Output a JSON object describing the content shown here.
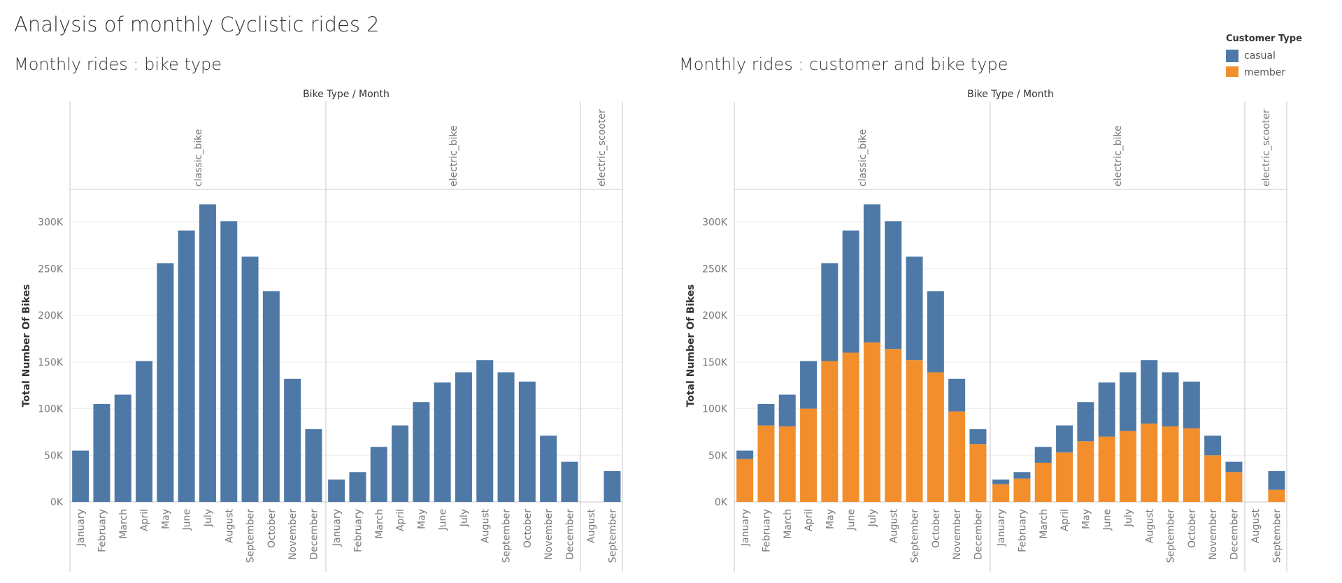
{
  "dashboard": {
    "title": "Analysis of monthly Cyclistic rides 2"
  },
  "legend": {
    "title": "Customer Type",
    "items": [
      {
        "label": "casual",
        "color": "#4e79a7"
      },
      {
        "label": "member",
        "color": "#f28e2b"
      }
    ]
  },
  "chart_data": [
    {
      "type": "bar",
      "title": "Monthly rides : bike type",
      "column_header": "Bike Type  /  Month",
      "ylabel": "Total Number Of Bikes",
      "ylim": [
        0,
        335000
      ],
      "yticks": [
        0,
        50000,
        100000,
        150000,
        200000,
        250000,
        300000
      ],
      "ytick_labels": [
        "0K",
        "50K",
        "100K",
        "150K",
        "200K",
        "250K",
        "300K"
      ],
      "color": "#4e79a7",
      "panes": [
        {
          "name": "classic_bike",
          "categories": [
            "January",
            "February",
            "March",
            "April",
            "May",
            "June",
            "July",
            "August",
            "September",
            "October",
            "November",
            "December"
          ],
          "values": [
            55000,
            105000,
            115000,
            151000,
            256000,
            291000,
            319000,
            301000,
            263000,
            226000,
            132000,
            78000
          ]
        },
        {
          "name": "electric_bike",
          "categories": [
            "January",
            "February",
            "March",
            "April",
            "May",
            "June",
            "July",
            "August",
            "September",
            "October",
            "November",
            "December"
          ],
          "values": [
            24000,
            32000,
            59000,
            82000,
            107000,
            128000,
            139000,
            152000,
            139000,
            129000,
            71000,
            43000
          ]
        },
        {
          "name": "electric_scooter",
          "categories": [
            "August",
            "September"
          ],
          "values": [
            0,
            33000
          ]
        }
      ]
    },
    {
      "type": "bar",
      "stacked": true,
      "title": "Monthly rides : customer and bike type",
      "column_header": "Bike Type  /  Month",
      "ylabel": "Total Number Of Bikes",
      "ylim": [
        0,
        335000
      ],
      "yticks": [
        0,
        50000,
        100000,
        150000,
        200000,
        250000,
        300000
      ],
      "ytick_labels": [
        "0K",
        "50K",
        "100K",
        "150K",
        "200K",
        "250K",
        "300K"
      ],
      "panes": [
        {
          "name": "classic_bike",
          "categories": [
            "January",
            "February",
            "March",
            "April",
            "May",
            "June",
            "July",
            "August",
            "September",
            "October",
            "November",
            "December"
          ],
          "series": [
            {
              "name": "member",
              "color": "#f28e2b",
              "values": [
                46000,
                82000,
                81000,
                100000,
                151000,
                160000,
                171000,
                164000,
                152000,
                139000,
                97000,
                62000
              ]
            },
            {
              "name": "casual",
              "color": "#4e79a7",
              "values": [
                9000,
                23000,
                34000,
                51000,
                105000,
                131000,
                148000,
                137000,
                111000,
                87000,
                35000,
                16000
              ]
            }
          ]
        },
        {
          "name": "electric_bike",
          "categories": [
            "January",
            "February",
            "March",
            "April",
            "May",
            "June",
            "July",
            "August",
            "September",
            "October",
            "November",
            "December"
          ],
          "series": [
            {
              "name": "member",
              "color": "#f28e2b",
              "values": [
                19000,
                25000,
                42000,
                53000,
                65000,
                70000,
                76000,
                84000,
                81000,
                79000,
                50000,
                32000
              ]
            },
            {
              "name": "casual",
              "color": "#4e79a7",
              "values": [
                5000,
                7000,
                17000,
                29000,
                42000,
                58000,
                63000,
                68000,
                58000,
                50000,
                21000,
                11000
              ]
            }
          ]
        },
        {
          "name": "electric_scooter",
          "categories": [
            "August",
            "September"
          ],
          "series": [
            {
              "name": "member",
              "color": "#f28e2b",
              "values": [
                0,
                13000
              ]
            },
            {
              "name": "casual",
              "color": "#4e79a7",
              "values": [
                0,
                20000
              ]
            }
          ]
        }
      ]
    }
  ]
}
